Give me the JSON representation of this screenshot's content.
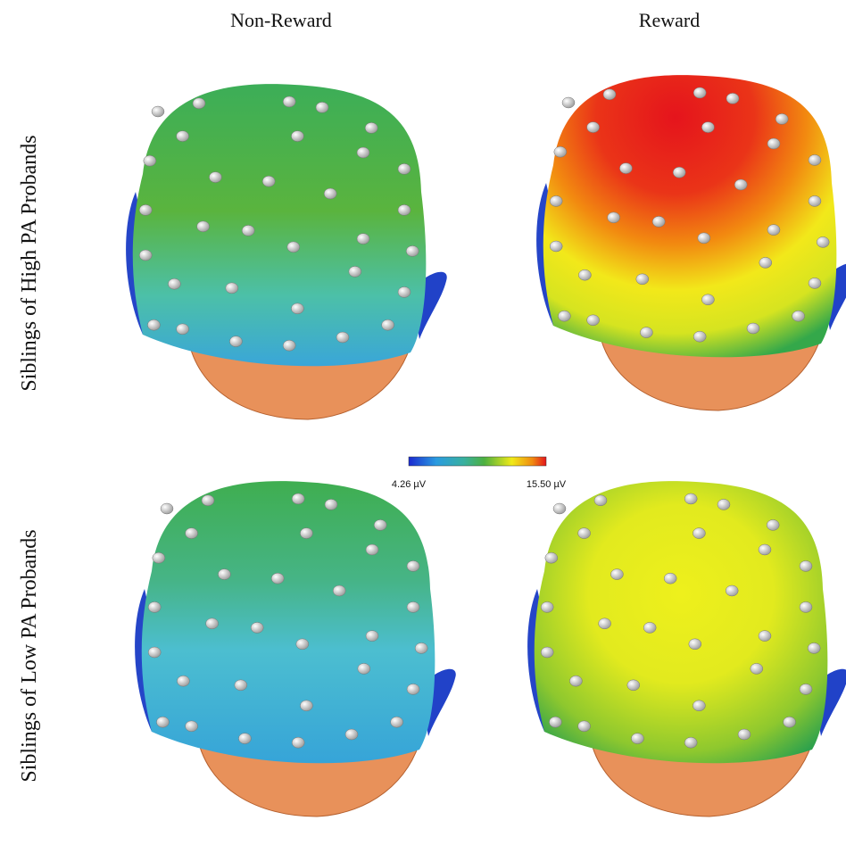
{
  "columns": [
    "Non-Reward",
    "Reward"
  ],
  "rows": [
    "Siblings of High PA Probands",
    "Siblings of Low PA Probands"
  ],
  "colorbar": {
    "min_label": "4.26 µV",
    "max_label": "15.50 µV"
  }
}
